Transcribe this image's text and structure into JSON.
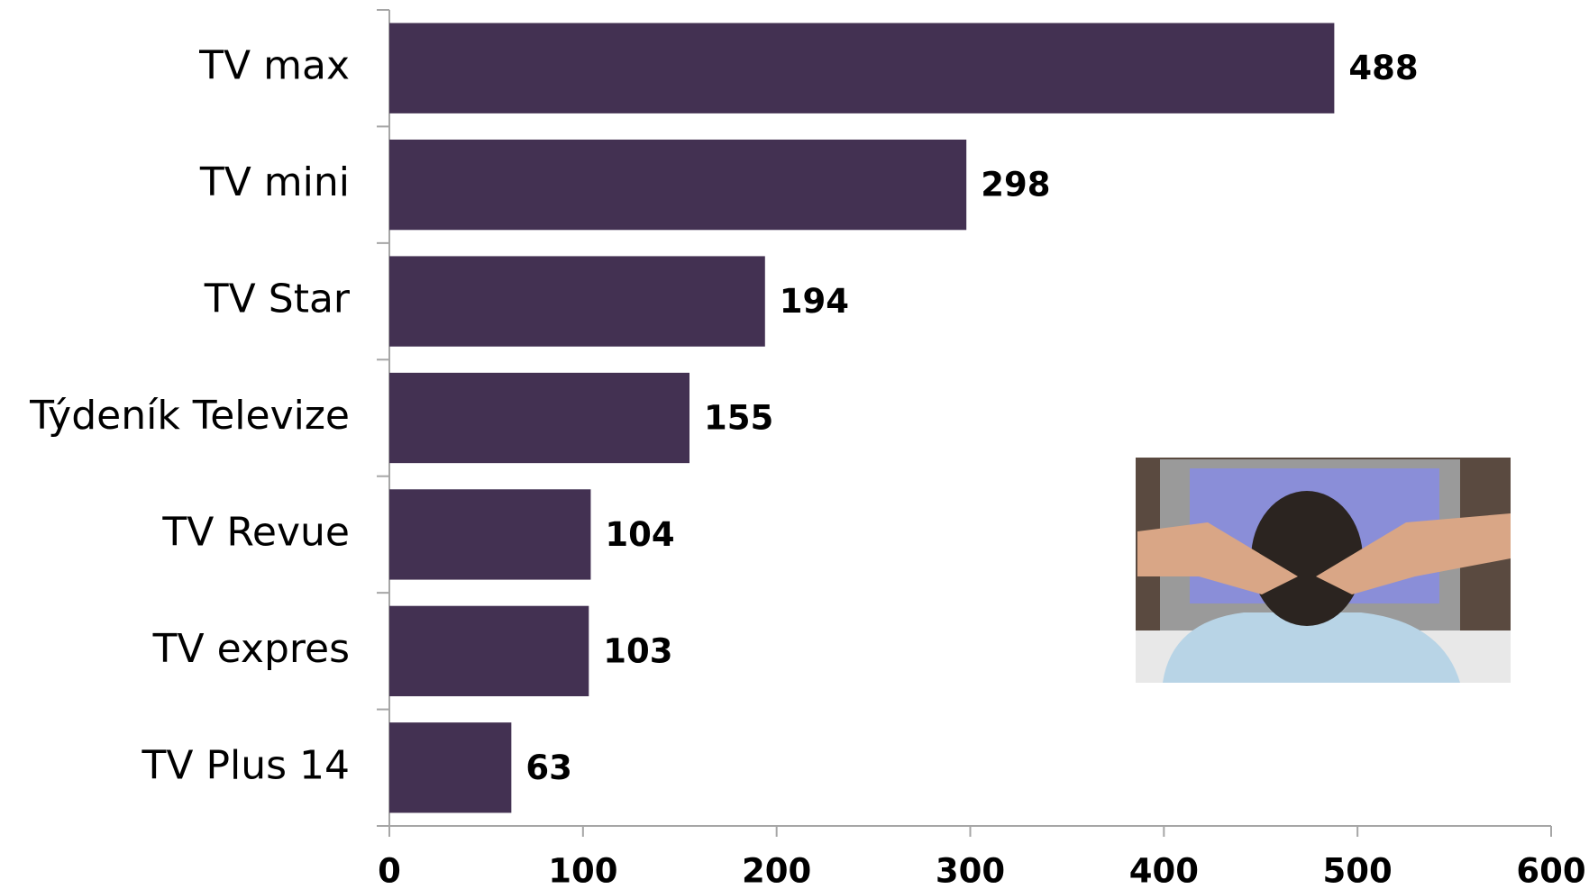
{
  "chart_data": {
    "type": "bar",
    "orientation": "horizontal",
    "categories": [
      "TV max",
      "TV mini",
      "TV Star",
      "Týdeník Televize",
      "TV Revue",
      "TV expres",
      "TV Plus 14"
    ],
    "values": [
      488,
      298,
      194,
      155,
      104,
      103,
      63
    ],
    "color": "#433152",
    "xlim": [
      0,
      600
    ],
    "xticks": [
      0,
      100,
      200,
      300,
      400,
      500,
      600
    ],
    "grid": false
  }
}
